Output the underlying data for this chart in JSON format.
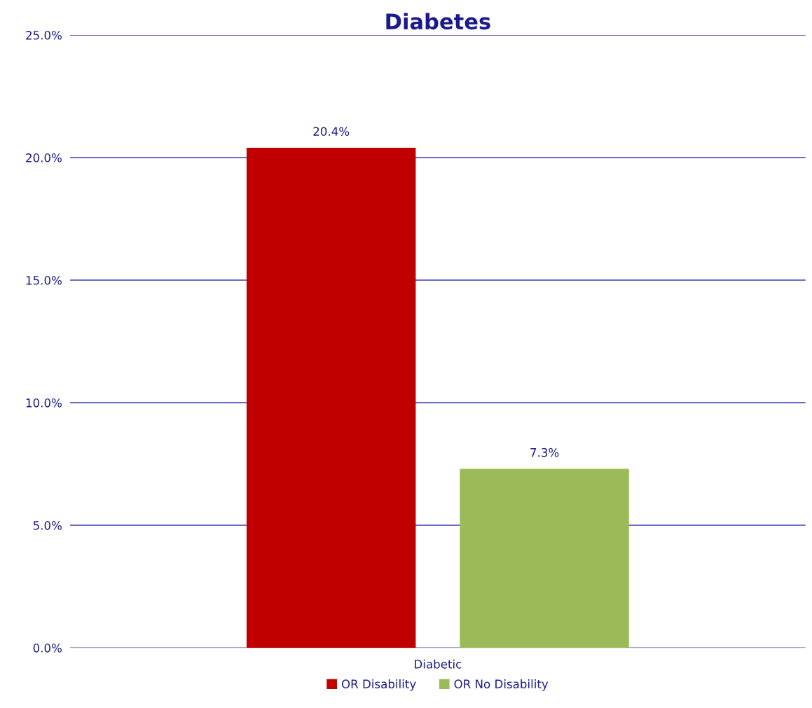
{
  "chart_data": {
    "type": "bar",
    "title": "Diabetes",
    "categories": [
      "Diabetic"
    ],
    "series": [
      {
        "name": "OR Disability",
        "color": "#c00000",
        "values": [
          20.4
        ],
        "value_labels": [
          "20.4%"
        ]
      },
      {
        "name": "OR No Disability",
        "color": "#9bbb59",
        "values": [
          7.3
        ],
        "value_labels": [
          "7.3%"
        ]
      }
    ],
    "ylim": [
      0,
      25
    ],
    "yticks": [
      {
        "value": 0,
        "label": "0.0%"
      },
      {
        "value": 5,
        "label": "5.0%"
      },
      {
        "value": 10,
        "label": "10.0%"
      },
      {
        "value": 15,
        "label": "15.0%"
      },
      {
        "value": 20,
        "label": "20.0%"
      },
      {
        "value": 25,
        "label": "25.0%"
      }
    ],
    "grid": "y",
    "legend": "bottom"
  }
}
